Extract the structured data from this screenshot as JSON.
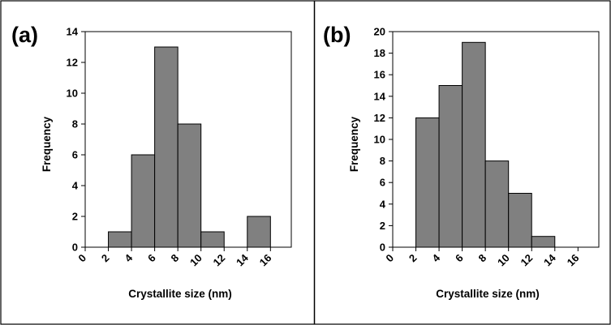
{
  "chart_data": [
    {
      "type": "bar",
      "panel_label": "(a)",
      "x": [
        2,
        4,
        6,
        8,
        10,
        12,
        14
      ],
      "bin_width": 2,
      "values": [
        1,
        6,
        13,
        8,
        1,
        0,
        2
      ],
      "xticks": [
        "0",
        "2",
        "4",
        "6",
        "8",
        "10",
        "12",
        "14",
        "16"
      ],
      "yticks": [
        "0",
        "2",
        "4",
        "6",
        "8",
        "10",
        "12",
        "14"
      ],
      "xlabel": "Crystallite size (nm)",
      "ylabel": "Frequency",
      "xlim": [
        0,
        16
      ],
      "ylim": [
        0,
        14
      ],
      "grid": false,
      "bar_color": "#808080"
    },
    {
      "type": "bar",
      "panel_label": "(b)",
      "x": [
        2,
        4,
        6,
        8,
        10,
        12,
        14
      ],
      "bin_width": 2,
      "values": [
        12,
        15,
        19,
        8,
        5,
        1,
        0
      ],
      "xticks": [
        "0",
        "2",
        "4",
        "6",
        "8",
        "10",
        "12",
        "14",
        "16"
      ],
      "yticks": [
        "0",
        "2",
        "4",
        "6",
        "8",
        "10",
        "12",
        "14",
        "16",
        "18",
        "20"
      ],
      "xlabel": "Crystallite size (nm)",
      "ylabel": "Frequency",
      "xlim": [
        0,
        16
      ],
      "ylim": [
        0,
        20
      ],
      "grid": false,
      "bar_color": "#808080"
    }
  ]
}
